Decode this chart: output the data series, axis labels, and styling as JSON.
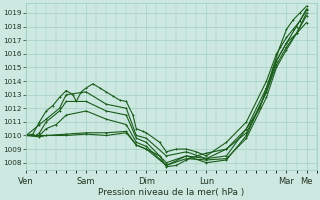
{
  "xlabel": "Pression niveau de la mer( hPa )",
  "ylim": [
    1007.5,
    1019.7
  ],
  "yticks": [
    1008,
    1009,
    1010,
    1011,
    1012,
    1013,
    1014,
    1015,
    1016,
    1017,
    1018,
    1019
  ],
  "xtick_labels": [
    "Ven",
    "Sam",
    "Dim",
    "Lun",
    "Mar",
    "Me"
  ],
  "xtick_positions": [
    0,
    36,
    72,
    108,
    156,
    168
  ],
  "xlim": [
    0,
    174
  ],
  "background_color": "#cce8e0",
  "grid_color": "#99ccbb",
  "line_color": "#1a5c1a",
  "text_color": "#223322",
  "line_alpha": 1.0,
  "lines": [
    {
      "points": [
        [
          0,
          1010.0
        ],
        [
          4,
          1010.1
        ],
        [
          8,
          1011.0
        ],
        [
          12,
          1011.8
        ],
        [
          16,
          1012.2
        ],
        [
          20,
          1012.8
        ],
        [
          24,
          1013.3
        ],
        [
          28,
          1013.0
        ],
        [
          30,
          1012.5
        ],
        [
          33,
          1013.2
        ],
        [
          36,
          1013.5
        ],
        [
          40,
          1013.8
        ],
        [
          44,
          1013.5
        ],
        [
          48,
          1013.2
        ],
        [
          52,
          1012.9
        ],
        [
          56,
          1012.6
        ],
        [
          60,
          1012.5
        ],
        [
          64,
          1011.5
        ],
        [
          66,
          1010.5
        ],
        [
          70,
          1010.3
        ],
        [
          72,
          1010.2
        ],
        [
          80,
          1009.5
        ],
        [
          84,
          1008.8
        ],
        [
          90,
          1009.0
        ],
        [
          96,
          1009.0
        ],
        [
          102,
          1008.8
        ],
        [
          108,
          1008.5
        ],
        [
          120,
          1009.5
        ],
        [
          132,
          1011.0
        ],
        [
          144,
          1014.0
        ],
        [
          150,
          1016.0
        ],
        [
          156,
          1017.2
        ],
        [
          160,
          1017.8
        ],
        [
          164,
          1018.4
        ],
        [
          168,
          1019.2
        ]
      ]
    },
    {
      "points": [
        [
          0,
          1010.0
        ],
        [
          8,
          1010.8
        ],
        [
          12,
          1011.2
        ],
        [
          20,
          1012.0
        ],
        [
          24,
          1013.0
        ],
        [
          36,
          1013.2
        ],
        [
          48,
          1012.3
        ],
        [
          60,
          1012.0
        ],
        [
          66,
          1010.0
        ],
        [
          72,
          1009.8
        ],
        [
          84,
          1008.5
        ],
        [
          96,
          1008.8
        ],
        [
          108,
          1008.3
        ],
        [
          120,
          1008.5
        ],
        [
          132,
          1010.5
        ],
        [
          144,
          1013.5
        ],
        [
          150,
          1015.5
        ],
        [
          156,
          1016.8
        ],
        [
          162,
          1017.5
        ],
        [
          168,
          1018.3
        ]
      ]
    },
    {
      "points": [
        [
          0,
          1010.0
        ],
        [
          6,
          1010.0
        ],
        [
          8,
          1010.2
        ],
        [
          12,
          1011.0
        ],
        [
          20,
          1011.8
        ],
        [
          24,
          1012.5
        ],
        [
          36,
          1012.5
        ],
        [
          48,
          1011.8
        ],
        [
          60,
          1011.5
        ],
        [
          66,
          1009.8
        ],
        [
          72,
          1009.5
        ],
        [
          84,
          1008.0
        ],
        [
          96,
          1008.5
        ],
        [
          108,
          1008.0
        ],
        [
          120,
          1008.2
        ],
        [
          132,
          1010.0
        ],
        [
          144,
          1013.2
        ],
        [
          150,
          1015.2
        ],
        [
          156,
          1016.5
        ],
        [
          162,
          1017.5
        ],
        [
          168,
          1018.8
        ]
      ]
    },
    {
      "points": [
        [
          0,
          1010.0
        ],
        [
          8,
          1010.0
        ],
        [
          12,
          1010.5
        ],
        [
          18,
          1010.8
        ],
        [
          24,
          1011.5
        ],
        [
          36,
          1011.8
        ],
        [
          48,
          1011.2
        ],
        [
          60,
          1010.8
        ],
        [
          66,
          1009.5
        ],
        [
          72,
          1009.2
        ],
        [
          84,
          1007.8
        ],
        [
          96,
          1008.3
        ],
        [
          108,
          1008.2
        ],
        [
          120,
          1008.3
        ],
        [
          132,
          1009.8
        ],
        [
          144,
          1012.8
        ],
        [
          150,
          1015.0
        ],
        [
          156,
          1016.3
        ],
        [
          162,
          1017.5
        ],
        [
          168,
          1019.0
        ]
      ]
    },
    {
      "points": [
        [
          0,
          1010.0
        ],
        [
          4,
          1010.0
        ],
        [
          8,
          1010.0
        ],
        [
          12,
          1010.0
        ],
        [
          24,
          1010.1
        ],
        [
          36,
          1010.2
        ],
        [
          48,
          1010.2
        ],
        [
          60,
          1010.3
        ],
        [
          66,
          1009.3
        ],
        [
          72,
          1009.0
        ],
        [
          80,
          1008.5
        ],
        [
          84,
          1007.7
        ],
        [
          90,
          1007.8
        ],
        [
          96,
          1008.2
        ],
        [
          102,
          1008.5
        ],
        [
          108,
          1008.7
        ],
        [
          120,
          1009.0
        ],
        [
          132,
          1010.5
        ],
        [
          140,
          1012.0
        ],
        [
          144,
          1013.5
        ],
        [
          148,
          1015.0
        ],
        [
          152,
          1016.5
        ],
        [
          156,
          1017.8
        ],
        [
          160,
          1018.5
        ],
        [
          164,
          1019.0
        ],
        [
          168,
          1019.5
        ]
      ]
    },
    {
      "points": [
        [
          0,
          1010.0
        ],
        [
          8,
          1009.9
        ],
        [
          12,
          1010.0
        ],
        [
          24,
          1010.0
        ],
        [
          36,
          1010.1
        ],
        [
          48,
          1010.0
        ],
        [
          60,
          1010.2
        ],
        [
          66,
          1009.3
        ],
        [
          72,
          1009.0
        ],
        [
          84,
          1007.8
        ],
        [
          96,
          1008.5
        ],
        [
          108,
          1008.3
        ],
        [
          120,
          1009.0
        ],
        [
          132,
          1010.2
        ],
        [
          144,
          1013.2
        ],
        [
          150,
          1015.5
        ],
        [
          156,
          1016.8
        ],
        [
          162,
          1018.0
        ],
        [
          168,
          1019.3
        ]
      ]
    }
  ]
}
